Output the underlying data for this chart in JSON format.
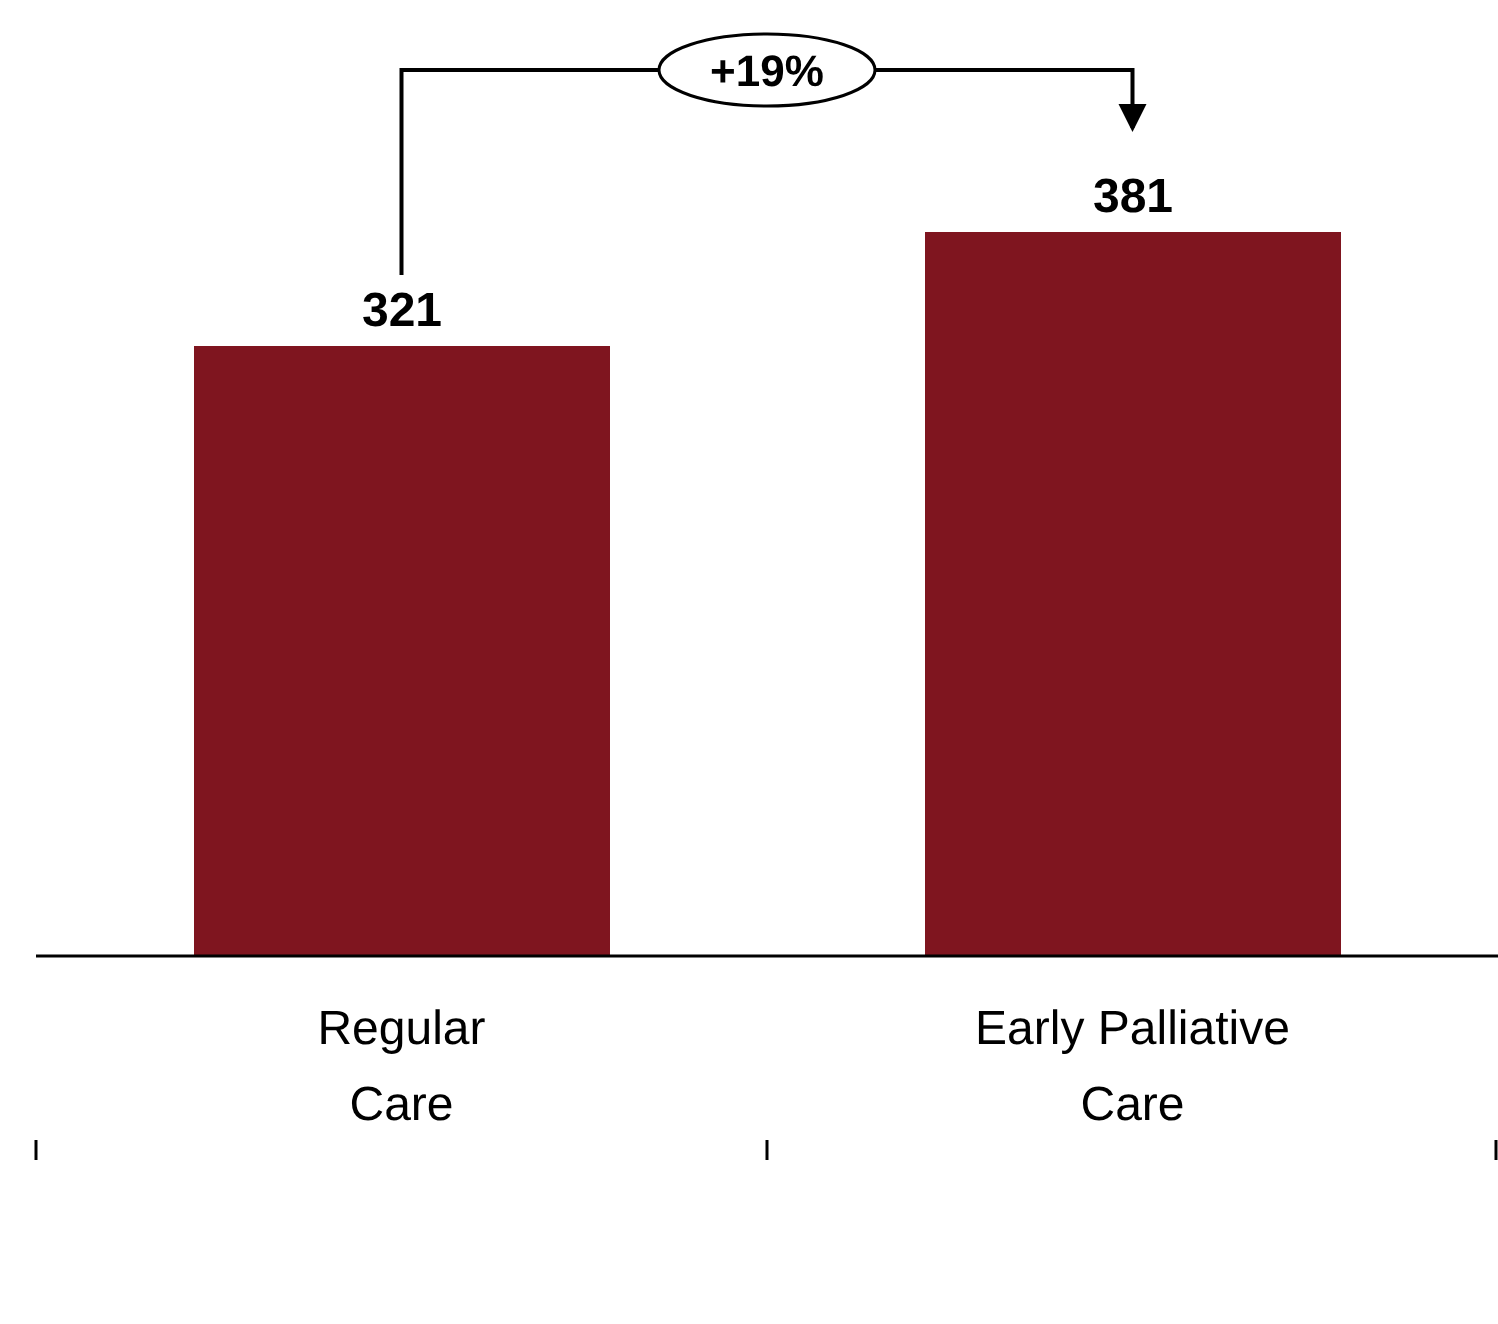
{
  "chart_data": {
    "type": "bar",
    "categories": [
      "Regular Care",
      "Early Palliative Care"
    ],
    "values": [
      321,
      381
    ],
    "color": "#7f151f",
    "data_labels": true,
    "annotations": [
      "+19%"
    ]
  }
}
